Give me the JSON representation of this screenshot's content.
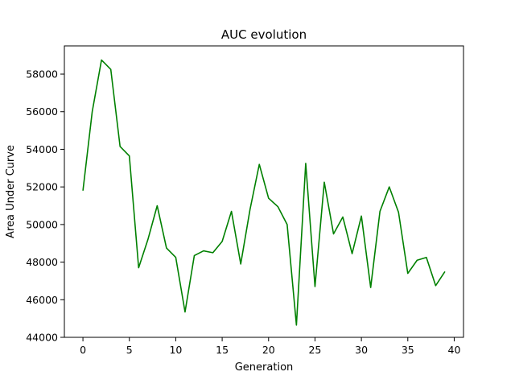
{
  "chart_data": {
    "type": "line",
    "title": "AUC evolution",
    "xlabel": "Generation",
    "ylabel": "Area Under Curve",
    "xlim": [
      -2,
      41
    ],
    "ylim": [
      44000,
      59500
    ],
    "xticks": [
      0,
      5,
      10,
      15,
      20,
      25,
      30,
      35,
      40
    ],
    "yticks": [
      44000,
      46000,
      48000,
      50000,
      52000,
      54000,
      56000,
      58000
    ],
    "grid": false,
    "legend": "none",
    "line_color": "#008000",
    "x": [
      0,
      1,
      2,
      3,
      4,
      5,
      6,
      7,
      8,
      9,
      10,
      11,
      12,
      13,
      14,
      15,
      16,
      17,
      18,
      19,
      20,
      21,
      22,
      23,
      24,
      25,
      26,
      27,
      28,
      29,
      30,
      31,
      32,
      33,
      34,
      35,
      36,
      37,
      38,
      39
    ],
    "y": [
      51800,
      56000,
      58750,
      58250,
      54150,
      53650,
      47700,
      49200,
      51000,
      48750,
      48250,
      45350,
      48350,
      48600,
      48500,
      49100,
      50700,
      47900,
      50800,
      53200,
      51400,
      50950,
      50000,
      44650,
      53250,
      46700,
      52250,
      49500,
      50400,
      48450,
      50450,
      46650,
      50700,
      52000,
      50650,
      47400,
      48100,
      48250,
      46750,
      47500
    ]
  }
}
